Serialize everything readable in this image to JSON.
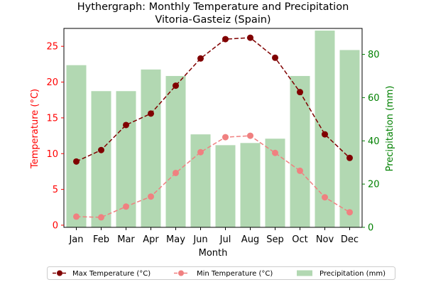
{
  "chart_data": {
    "type": "bar+line",
    "title_line1": "Hythergraph: Monthly Temperature and Precipitation",
    "title_line2": "Vitoria-Gasteiz (Spain)",
    "xlabel": "Month",
    "ylabel_left": "Temperature (°C)",
    "ylabel_right": "Precipitation (mm)",
    "categories": [
      "Jan",
      "Feb",
      "Mar",
      "Apr",
      "May",
      "Jun",
      "Jul",
      "Aug",
      "Sep",
      "Oct",
      "Nov",
      "Dec"
    ],
    "y_left_range": [
      -0.3,
      27.5
    ],
    "y_left_ticks": [
      0,
      5,
      10,
      15,
      20,
      25
    ],
    "y_right_range": [
      0,
      92
    ],
    "y_right_ticks": [
      0,
      20,
      40,
      60,
      80
    ],
    "grid": false,
    "legend_position": "bottom",
    "series": [
      {
        "name": "Max Temperature (°C)",
        "axis": "left",
        "kind": "line",
        "color": "#800000",
        "values": [
          8.9,
          10.5,
          14.0,
          15.6,
          19.5,
          23.3,
          26.0,
          26.2,
          23.4,
          18.6,
          12.7,
          9.4
        ]
      },
      {
        "name": "Min Temperature (°C)",
        "axis": "left",
        "kind": "line",
        "color": "#f08080",
        "values": [
          1.2,
          1.1,
          2.6,
          4.0,
          7.3,
          10.2,
          12.3,
          12.5,
          10.1,
          7.6,
          3.9,
          1.8
        ]
      },
      {
        "name": "Precipitation (mm)",
        "axis": "right",
        "kind": "bar",
        "color": "#b2d8b2",
        "values": [
          75,
          63,
          63,
          73,
          70,
          43,
          38,
          39,
          41,
          70,
          91,
          82
        ]
      }
    ]
  }
}
